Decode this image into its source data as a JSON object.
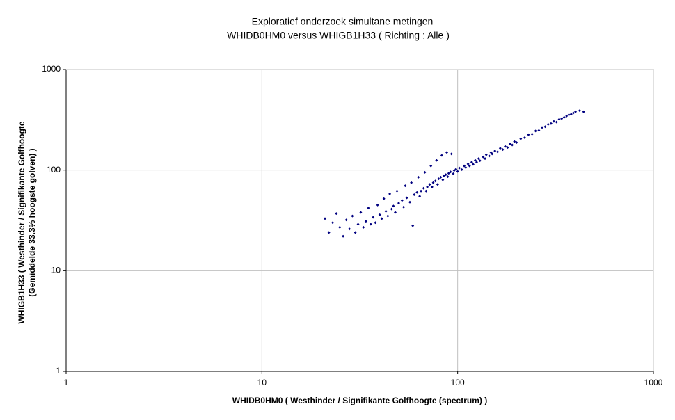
{
  "chart_data": {
    "type": "scatter",
    "title": "Exploratief onderzoek simultane metingen",
    "subtitle": "WHIDB0HM0 versus WHIGB1H33 ( Richting : Alle )",
    "x_label": "WHIDB0HM0 ( Westhinder / Signifikante Golfhoogte (spectrum) )",
    "y_label": [
      "WHIGB1H33 ( Westhinder / Signifikante Golfhoogte",
      "(Gemiddelde 33.3%  hoogste golven) )"
    ],
    "xscale": "log",
    "yscale": "log",
    "grid": true,
    "xlim": [
      1,
      1000
    ],
    "ylim": [
      1,
      1000
    ],
    "xticks": [
      1,
      10,
      100,
      1000
    ],
    "yticks": [
      1,
      10,
      100,
      1000
    ],
    "series": [
      {
        "color": "#000080",
        "x": [
          21,
          22,
          23,
          24,
          25,
          26,
          27,
          28,
          29,
          30,
          31,
          32,
          33,
          34,
          35,
          36,
          37,
          38,
          39,
          40,
          41,
          42,
          43,
          44,
          45,
          46,
          47,
          48,
          49,
          50,
          52,
          53,
          54,
          55,
          57,
          58,
          59,
          60,
          62,
          63,
          64,
          65,
          67,
          68,
          69,
          70,
          72,
          73,
          74,
          75,
          77,
          78,
          79,
          80,
          82,
          83,
          84,
          85,
          87,
          88,
          89,
          90,
          92,
          93,
          95,
          96,
          98,
          100,
          102,
          105,
          108,
          110,
          113,
          115,
          118,
          120,
          123,
          125,
          128,
          130,
          135,
          138,
          140,
          145,
          148,
          150,
          155,
          160,
          165,
          170,
          175,
          180,
          185,
          190,
          195,
          200,
          210,
          220,
          230,
          240,
          250,
          260,
          270,
          280,
          290,
          300,
          310,
          320,
          330,
          340,
          350,
          360,
          370,
          380,
          390,
          400,
          420,
          440
        ],
        "values": [
          33,
          24,
          30,
          37,
          27,
          22,
          32,
          26,
          35,
          24,
          29,
          38,
          27,
          31,
          42,
          29,
          34,
          30,
          45,
          36,
          33,
          52,
          39,
          35,
          58,
          41,
          44,
          38,
          62,
          47,
          50,
          43,
          70,
          53,
          48,
          75,
          28,
          57,
          60,
          85,
          55,
          62,
          66,
          95,
          62,
          68,
          72,
          110,
          68,
          75,
          78,
          125,
          72,
          82,
          85,
          140,
          80,
          88,
          90,
          150,
          86,
          93,
          96,
          145,
          92,
          99,
          102,
          97,
          105,
          101,
          110,
          106,
          115,
          110,
          120,
          114,
          125,
          120,
          130,
          124,
          135,
          130,
          142,
          138,
          150,
          145,
          155,
          152,
          165,
          160,
          172,
          168,
          182,
          178,
          192,
          188,
          205,
          210,
          225,
          228,
          245,
          248,
          265,
          270,
          285,
          290,
          305,
          300,
          320,
          325,
          335,
          345,
          355,
          360,
          370,
          380,
          390,
          380
        ]
      }
    ]
  }
}
